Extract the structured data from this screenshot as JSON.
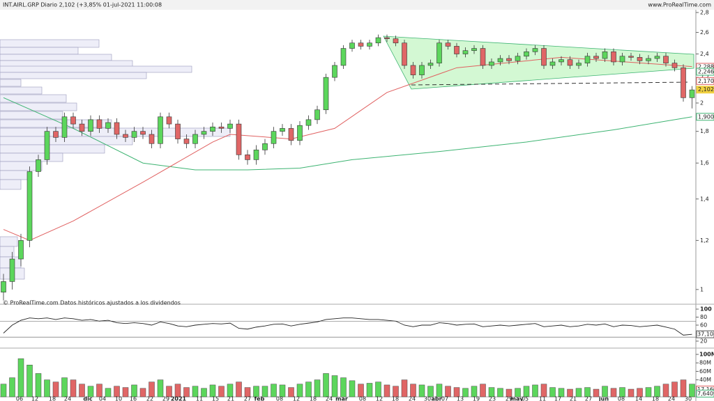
{
  "header": {
    "title": "INT.AIRL.GRP Diario 2,102 (+3,85% 01-jul-2021 11:00:08",
    "site": "www.ProRealTime.com",
    "note": "© ProRealTime.com Datos históricos ajustados a los dividendos"
  },
  "chart_data": {
    "type": "candlestick",
    "log_scale": true,
    "ylim": [
      0.964,
      2.873
    ],
    "yticks": [
      {
        "value": 2.8,
        "label": "2,8"
      },
      {
        "value": 2.6,
        "label": "2,6"
      },
      {
        "value": 2.4,
        "label": "2,4"
      },
      {
        "value": 2.2,
        "label": "2,2"
      },
      2,
      {
        "value": 1.8,
        "label": "1,8"
      },
      {
        "value": 1.6,
        "label": "1,6"
      },
      {
        "value": 1.4,
        "label": "1,4"
      },
      {
        "value": 1.2,
        "label": "1,2"
      },
      1
    ],
    "up_color": "#5cd65c",
    "down_color": "#e06666",
    "x_labels": [
      "06",
      "12",
      "18",
      "24",
      "dic",
      "04",
      "10",
      "16",
      "22",
      "29",
      "2021",
      "11",
      "15",
      "21",
      "27",
      "feb",
      "08",
      "12",
      "18",
      "24",
      "mar",
      "08",
      "12",
      "18",
      "24",
      "30",
      "abr",
      "07",
      "13",
      "19",
      "23",
      "29",
      "may",
      "05",
      "11",
      "17",
      "21",
      "27",
      "jun",
      "08",
      "14",
      "18",
      "24",
      "30"
    ],
    "open": [
      0.99,
      1.03,
      1.12,
      1.2,
      1.55,
      1.62,
      1.8,
      1.76,
      1.9,
      1.85,
      1.8,
      1.88,
      1.82,
      1.86,
      1.78,
      1.76,
      1.8,
      1.78,
      1.72,
      1.9,
      1.85,
      1.75,
      1.72,
      1.78,
      1.8,
      1.83,
      1.82,
      1.85,
      1.65,
      1.62,
      1.68,
      1.72,
      1.8,
      1.82,
      1.74,
      1.84,
      1.88,
      1.95,
      2.2,
      2.3,
      2.45,
      2.5,
      2.47,
      2.5,
      2.55,
      2.54,
      2.5,
      2.3,
      2.22,
      2.3,
      2.32,
      2.5,
      2.47,
      2.4,
      2.43,
      2.45,
      2.3,
      2.33,
      2.36,
      2.34,
      2.38,
      2.42,
      2.45,
      2.3,
      2.33,
      2.35,
      2.3,
      2.32,
      2.38,
      2.36,
      2.42,
      2.33,
      2.38,
      2.37,
      2.34,
      2.36,
      2.38,
      2.32,
      2.28,
      2.04
    ],
    "high": [
      1.06,
      1.15,
      1.23,
      1.58,
      1.65,
      1.83,
      1.83,
      1.93,
      1.93,
      1.88,
      1.91,
      1.91,
      1.89,
      1.89,
      1.81,
      1.83,
      1.83,
      1.81,
      1.93,
      1.93,
      1.88,
      1.78,
      1.81,
      1.83,
      1.86,
      1.86,
      1.88,
      1.88,
      1.68,
      1.71,
      1.75,
      1.83,
      1.85,
      1.85,
      1.87,
      1.91,
      1.98,
      2.23,
      2.33,
      2.48,
      2.53,
      2.53,
      2.53,
      2.58,
      2.58,
      2.57,
      2.53,
      2.33,
      2.33,
      2.35,
      2.53,
      2.53,
      2.5,
      2.46,
      2.48,
      2.48,
      2.36,
      2.39,
      2.39,
      2.41,
      2.45,
      2.48,
      2.48,
      2.36,
      2.38,
      2.38,
      2.35,
      2.41,
      2.41,
      2.45,
      2.45,
      2.41,
      2.41,
      2.4,
      2.39,
      2.41,
      2.41,
      2.35,
      2.31,
      2.13
    ],
    "low": [
      0.96,
      1.0,
      1.09,
      1.17,
      1.52,
      1.59,
      1.73,
      1.73,
      1.82,
      1.77,
      1.77,
      1.79,
      1.79,
      1.75,
      1.73,
      1.73,
      1.75,
      1.69,
      1.69,
      1.82,
      1.72,
      1.69,
      1.69,
      1.75,
      1.77,
      1.79,
      1.79,
      1.62,
      1.59,
      1.59,
      1.65,
      1.69,
      1.77,
      1.71,
      1.71,
      1.81,
      1.85,
      1.92,
      2.17,
      2.27,
      2.42,
      2.44,
      2.44,
      2.47,
      2.51,
      2.47,
      2.27,
      2.19,
      2.19,
      2.27,
      2.29,
      2.44,
      2.37,
      2.37,
      2.4,
      2.27,
      2.27,
      2.3,
      2.31,
      2.31,
      2.35,
      2.39,
      2.27,
      2.27,
      2.3,
      2.27,
      2.27,
      2.29,
      2.33,
      2.33,
      2.3,
      2.3,
      2.34,
      2.31,
      2.31,
      2.33,
      2.29,
      2.25,
      2.01,
      1.96
    ],
    "close": [
      1.03,
      1.12,
      1.2,
      1.55,
      1.62,
      1.8,
      1.76,
      1.9,
      1.85,
      1.8,
      1.88,
      1.82,
      1.86,
      1.78,
      1.76,
      1.8,
      1.78,
      1.72,
      1.9,
      1.85,
      1.75,
      1.72,
      1.78,
      1.8,
      1.83,
      1.82,
      1.85,
      1.65,
      1.62,
      1.68,
      1.72,
      1.8,
      1.82,
      1.74,
      1.84,
      1.88,
      1.95,
      2.2,
      2.3,
      2.45,
      2.5,
      2.47,
      2.5,
      2.55,
      2.54,
      2.5,
      2.3,
      2.22,
      2.3,
      2.32,
      2.5,
      2.47,
      2.4,
      2.43,
      2.45,
      2.3,
      2.33,
      2.36,
      2.34,
      2.38,
      2.42,
      2.45,
      2.3,
      2.33,
      2.35,
      2.3,
      2.32,
      2.38,
      2.36,
      2.42,
      2.33,
      2.38,
      2.37,
      2.34,
      2.36,
      2.38,
      2.32,
      2.28,
      2.04,
      2.1
    ],
    "lines": [
      {
        "color": "#3cb371",
        "x": [
          0,
          8,
          16,
          22,
          28,
          34,
          40,
          50,
          60,
          70,
          79
        ],
        "values": [
          2.04,
          1.82,
          1.6,
          1.56,
          1.56,
          1.57,
          1.62,
          1.67,
          1.73,
          1.81,
          1.9
        ]
      },
      {
        "color": "#e06060",
        "x": [
          0,
          3,
          8,
          16,
          24,
          26,
          33,
          38,
          44,
          52,
          64,
          79
        ],
        "values": [
          1.25,
          1.2,
          1.29,
          1.49,
          1.73,
          1.78,
          1.75,
          1.82,
          2.08,
          2.28,
          2.37,
          2.29
        ]
      }
    ],
    "price_labels": [
      {
        "label": "2,2881",
        "value": 2.2881,
        "color": "#e06060"
      },
      {
        "label": "2,2467",
        "value": 2.2467,
        "color": "#3cb371"
      },
      {
        "label": "2,1707",
        "value": 2.1707,
        "color": "#e06060"
      },
      {
        "label": "2,102",
        "value": 2.102,
        "color": "#f0d040"
      },
      {
        "label": "1,9001",
        "value": 1.9001,
        "color": "#3cb371"
      }
    ],
    "rsi": {
      "ylim": [
        13,
        107
      ],
      "yticks": [
        100,
        80,
        60,
        40,
        20
      ],
      "last_label": "37,108",
      "values": [
        40,
        60,
        72,
        78,
        76,
        78,
        74,
        78,
        76,
        72,
        74,
        70,
        72,
        66,
        64,
        66,
        64,
        60,
        68,
        64,
        58,
        56,
        60,
        62,
        64,
        63,
        65,
        52,
        50,
        55,
        58,
        62,
        63,
        58,
        62,
        65,
        68,
        74,
        76,
        78,
        78,
        76,
        74,
        74,
        72,
        70,
        60,
        56,
        60,
        60,
        66,
        64,
        60,
        62,
        63,
        56,
        58,
        60,
        58,
        60,
        62,
        64,
        56,
        58,
        60,
        56,
        58,
        62,
        60,
        63,
        56,
        60,
        59,
        56,
        58,
        60,
        55,
        50,
        35,
        37.108
      ]
    },
    "volume": {
      "ylim": [
        0,
        105
      ],
      "yticks": [
        {
          "value": 100,
          "label": "100M"
        },
        {
          "value": 80,
          "label": "80M"
        },
        {
          "value": 60,
          "label": "60M"
        },
        {
          "value": 40,
          "label": "40M"
        },
        {
          "value": 20,
          "label": "20M"
        }
      ],
      "values": [
        30,
        45,
        90,
        75,
        55,
        40,
        35,
        45,
        40,
        30,
        25,
        30,
        20,
        25,
        22,
        28,
        20,
        35,
        40,
        25,
        30,
        22,
        25,
        20,
        28,
        25,
        30,
        35,
        22,
        25,
        25,
        30,
        28,
        22,
        30,
        35,
        40,
        55,
        50,
        45,
        38,
        30,
        32,
        35,
        28,
        25,
        40,
        30,
        28,
        25,
        30,
        25,
        22,
        20,
        25,
        30,
        22,
        20,
        18,
        20,
        25,
        28,
        30,
        22,
        20,
        18,
        20,
        22,
        18,
        25,
        20,
        22,
        18,
        20,
        22,
        25,
        30,
        35,
        40,
        30
      ],
      "labels": [
        {
          "label": "17,166",
          "value": 17.166,
          "color": "#e06060"
        },
        {
          "label": "7,6409",
          "value": 7.6409,
          "color": "#3cb371"
        }
      ]
    }
  }
}
